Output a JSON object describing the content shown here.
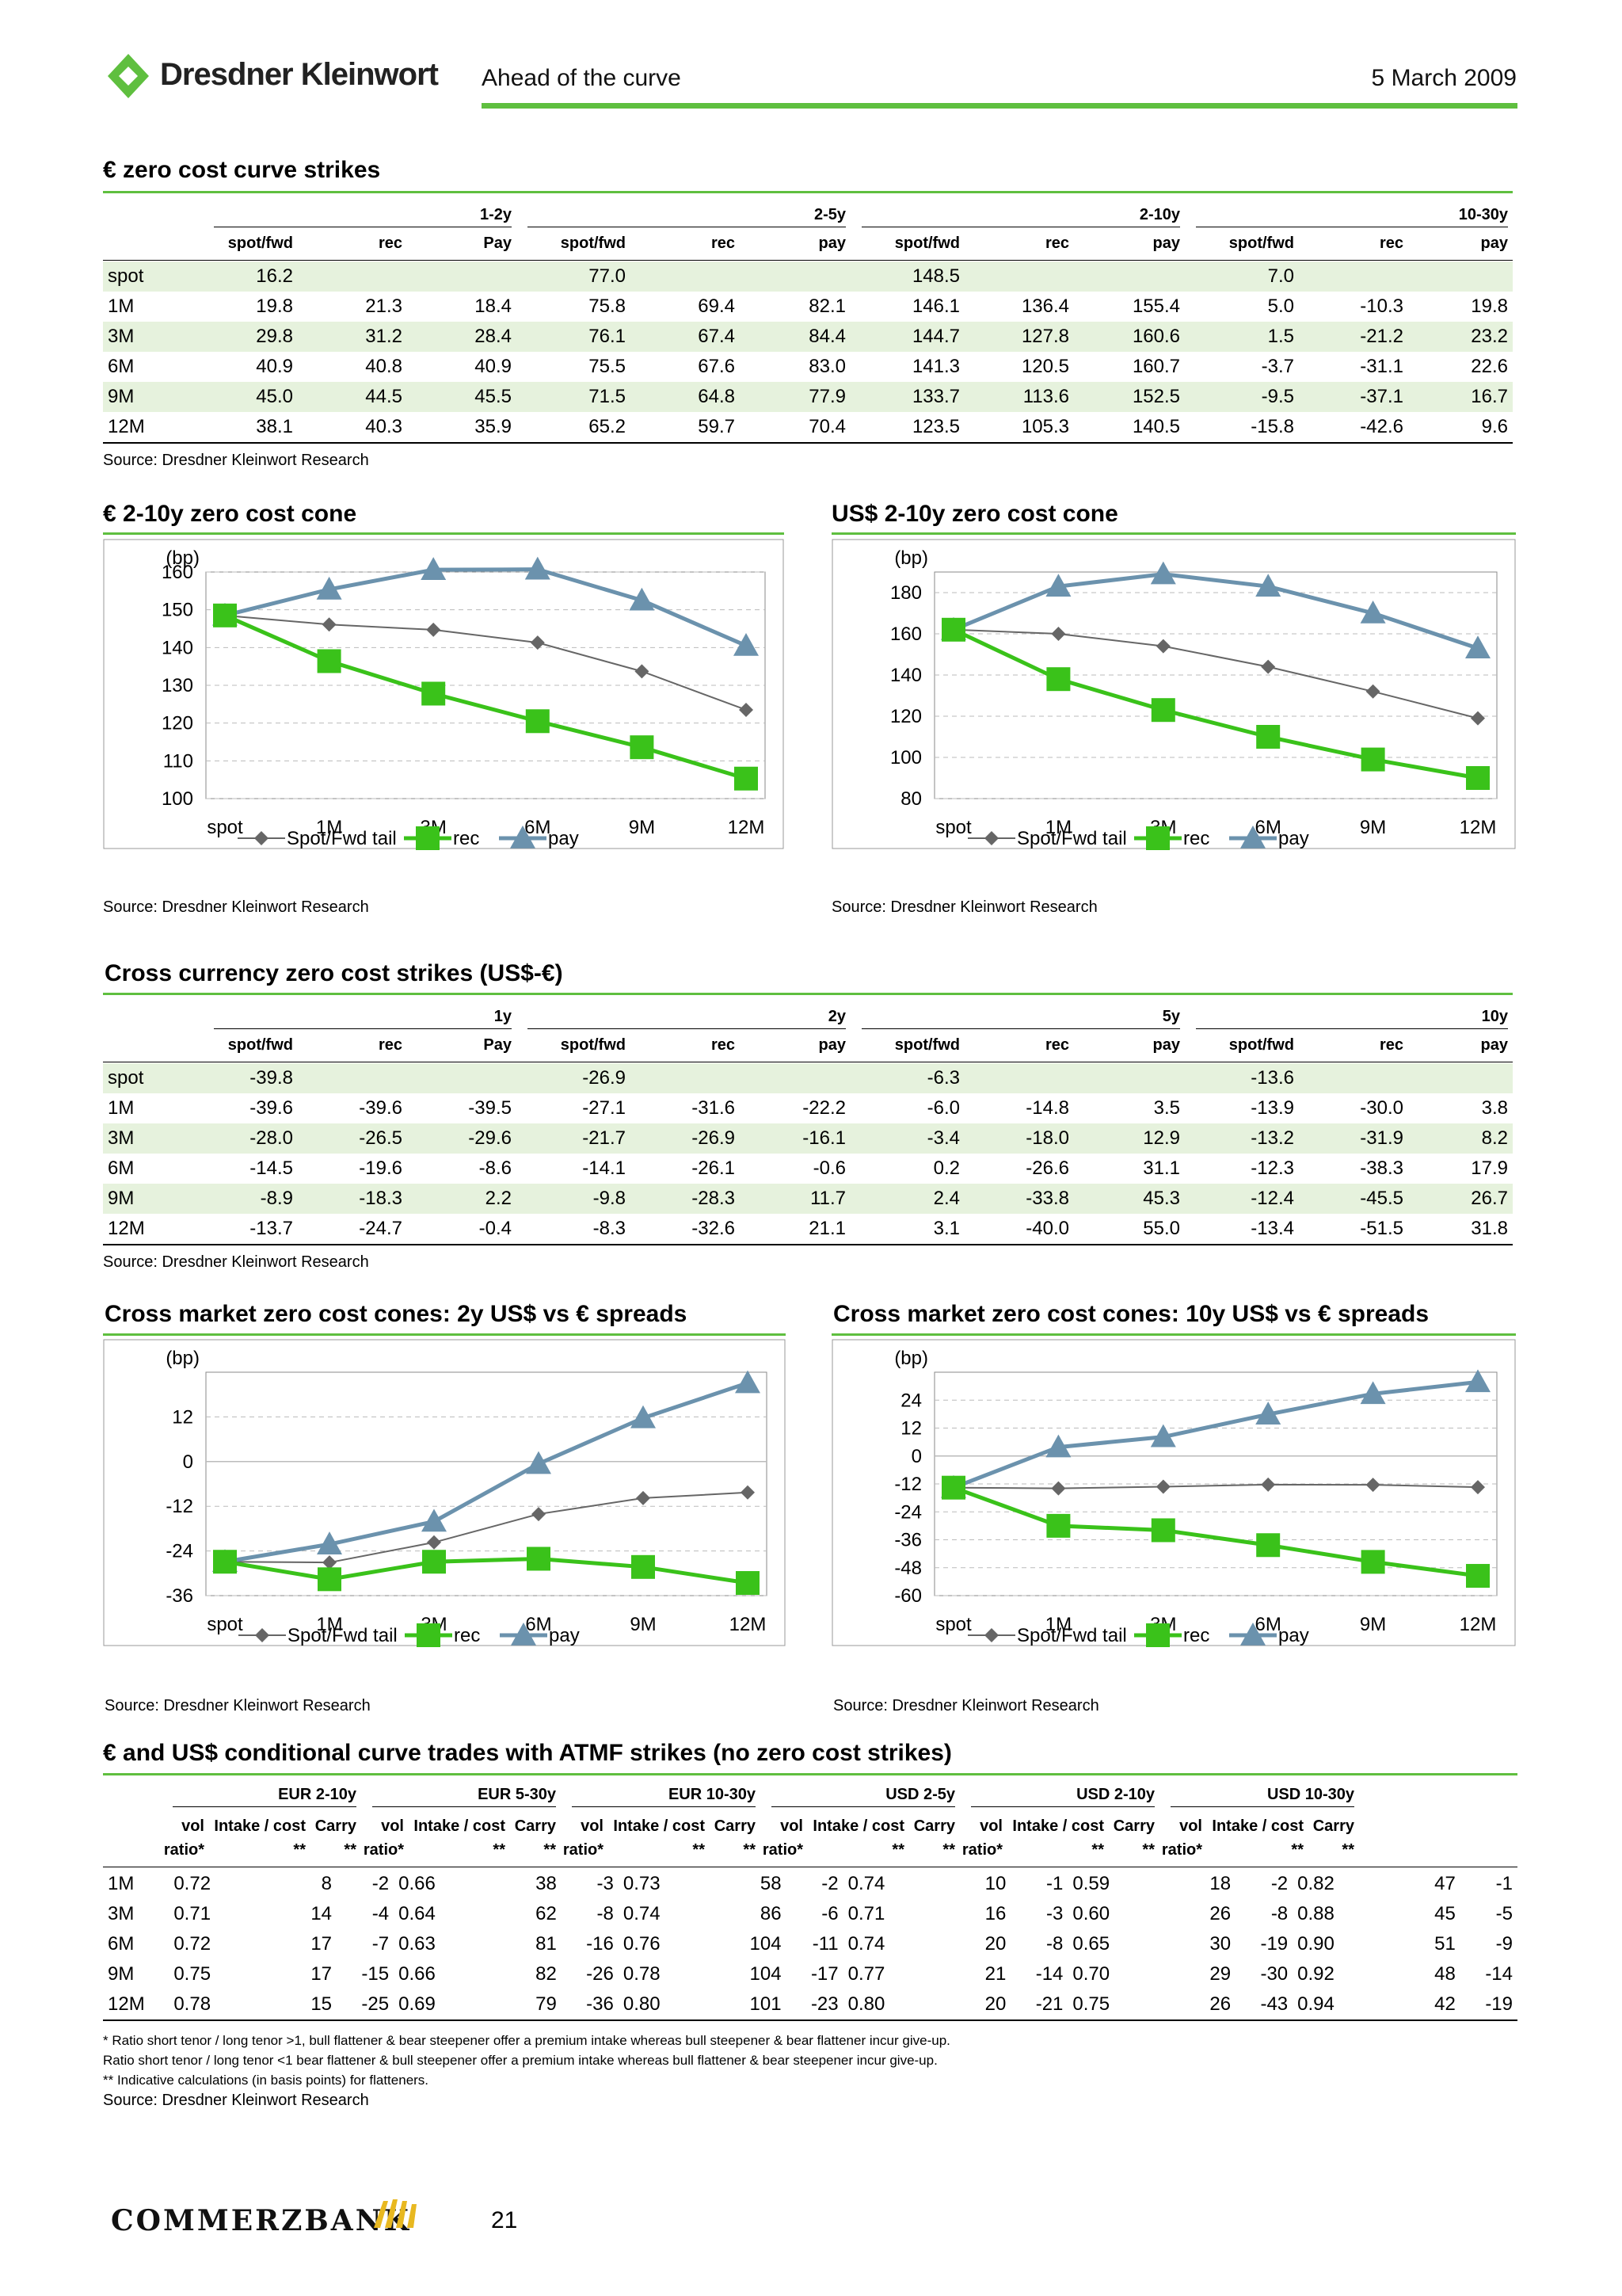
{
  "header": {
    "brand": "Dresdner Kleinwort",
    "publication": "Ahead of the curve",
    "date": "5 March 2009"
  },
  "footer": {
    "brand": "COMMERZBANK",
    "page": "21"
  },
  "source_text": "Source: Dresdner Kleinwort Research",
  "table1": {
    "title": "€ zero cost curve strikes",
    "groups": [
      "1-2y",
      "2-5y",
      "2-10y",
      "10-30y"
    ],
    "subheaders": [
      "spot/fwd",
      "rec",
      "Pay",
      "spot/fwd",
      "rec",
      "pay",
      "spot/fwd",
      "rec",
      "pay",
      "spot/fwd",
      "rec",
      "pay"
    ],
    "rows": [
      [
        "spot",
        "16.2",
        "",
        "",
        "77.0",
        "",
        "",
        "148.5",
        "",
        "",
        "7.0",
        "",
        ""
      ],
      [
        "1M",
        "19.8",
        "21.3",
        "18.4",
        "75.8",
        "69.4",
        "82.1",
        "146.1",
        "136.4",
        "155.4",
        "5.0",
        "-10.3",
        "19.8"
      ],
      [
        "3M",
        "29.8",
        "31.2",
        "28.4",
        "76.1",
        "67.4",
        "84.4",
        "144.7",
        "127.8",
        "160.6",
        "1.5",
        "-21.2",
        "23.2"
      ],
      [
        "6M",
        "40.9",
        "40.8",
        "40.9",
        "75.5",
        "67.6",
        "83.0",
        "141.3",
        "120.5",
        "160.7",
        "-3.7",
        "-31.1",
        "22.6"
      ],
      [
        "9M",
        "45.0",
        "44.5",
        "45.5",
        "71.5",
        "64.8",
        "77.9",
        "133.7",
        "113.6",
        "152.5",
        "-9.5",
        "-37.1",
        "16.7"
      ],
      [
        "12M",
        "38.1",
        "40.3",
        "35.9",
        "65.2",
        "59.7",
        "70.4",
        "123.5",
        "105.3",
        "140.5",
        "-15.8",
        "-42.6",
        "9.6"
      ]
    ]
  },
  "table2": {
    "title": "Cross currency zero cost strikes (US$-€)",
    "groups": [
      "1y",
      "2y",
      "5y",
      "10y"
    ],
    "subheaders": [
      "spot/fwd",
      "rec",
      "Pay",
      "spot/fwd",
      "rec",
      "pay",
      "spot/fwd",
      "rec",
      "pay",
      "spot/fwd",
      "rec",
      "pay"
    ],
    "rows": [
      [
        "spot",
        "-39.8",
        "",
        "",
        "-26.9",
        "",
        "",
        "-6.3",
        "",
        "",
        "-13.6",
        "",
        ""
      ],
      [
        "1M",
        "-39.6",
        "-39.6",
        "-39.5",
        "-27.1",
        "-31.6",
        "-22.2",
        "-6.0",
        "-14.8",
        "3.5",
        "-13.9",
        "-30.0",
        "3.8"
      ],
      [
        "3M",
        "-28.0",
        "-26.5",
        "-29.6",
        "-21.7",
        "-26.9",
        "-16.1",
        "-3.4",
        "-18.0",
        "12.9",
        "-13.2",
        "-31.9",
        "8.2"
      ],
      [
        "6M",
        "-14.5",
        "-19.6",
        "-8.6",
        "-14.1",
        "-26.1",
        "-0.6",
        "0.2",
        "-26.6",
        "31.1",
        "-12.3",
        "-38.3",
        "17.9"
      ],
      [
        "9M",
        "-8.9",
        "-18.3",
        "2.2",
        "-9.8",
        "-28.3",
        "11.7",
        "2.4",
        "-33.8",
        "45.3",
        "-12.4",
        "-45.5",
        "26.7"
      ],
      [
        "12M",
        "-13.7",
        "-24.7",
        "-0.4",
        "-8.3",
        "-32.6",
        "21.1",
        "3.1",
        "-40.0",
        "55.0",
        "-13.4",
        "-51.5",
        "31.8"
      ]
    ]
  },
  "table3": {
    "title": "€ and US$ conditional curve trades with ATMF strikes (no zero cost strikes)",
    "groups": [
      "EUR 2-10y",
      "EUR 5-30y",
      "EUR 10-30y",
      "USD 2-5y",
      "USD 2-10y",
      "USD 10-30y"
    ],
    "sub1": [
      "vol",
      "Intake / cost",
      "Carry"
    ],
    "sub2": [
      "ratio*",
      "**",
      "**"
    ],
    "rows": [
      [
        "1M",
        "0.72",
        "8",
        "-2",
        "0.66",
        "38",
        "-3",
        "0.73",
        "58",
        "-2",
        "0.74",
        "10",
        "-1",
        "0.59",
        "18",
        "-2",
        "0.82",
        "47",
        "-1"
      ],
      [
        "3M",
        "0.71",
        "14",
        "-4",
        "0.64",
        "62",
        "-8",
        "0.74",
        "86",
        "-6",
        "0.71",
        "16",
        "-3",
        "0.60",
        "26",
        "-8",
        "0.88",
        "45",
        "-5"
      ],
      [
        "6M",
        "0.72",
        "17",
        "-7",
        "0.63",
        "81",
        "-16",
        "0.76",
        "104",
        "-11",
        "0.74",
        "20",
        "-8",
        "0.65",
        "30",
        "-19",
        "0.90",
        "51",
        "-9"
      ],
      [
        "9M",
        "0.75",
        "17",
        "-15",
        "0.66",
        "82",
        "-26",
        "0.78",
        "104",
        "-17",
        "0.77",
        "21",
        "-14",
        "0.70",
        "29",
        "-30",
        "0.92",
        "48",
        "-14"
      ],
      [
        "12M",
        "0.78",
        "15",
        "-25",
        "0.69",
        "79",
        "-36",
        "0.80",
        "101",
        "-23",
        "0.80",
        "20",
        "-21",
        "0.75",
        "26",
        "-43",
        "0.94",
        "42",
        "-19"
      ]
    ],
    "notes": [
      "* Ratio short tenor / long tenor >1, bull flattener & bear steepener offer a premium intake whereas bull steepener & bear flattener incur give-up.",
      "Ratio short tenor / long tenor <1 bear flattener & bull steepener offer a premium intake whereas bull flattener & bear steepener incur give-up.",
      "** Indicative calculations (in basis points) for flatteners."
    ]
  },
  "chart_data": [
    {
      "type": "line",
      "title": "€ 2-10y zero cost cone",
      "ylabel": "(bp)",
      "categories": [
        "spot",
        "1M",
        "3M",
        "6M",
        "9M",
        "12M"
      ],
      "ylim": [
        100,
        160
      ],
      "yticks": [
        100,
        110,
        120,
        130,
        140,
        150,
        160
      ],
      "ytick_labels": [
        "100",
        "110",
        "120",
        "130",
        "140",
        "150",
        "160"
      ],
      "series": [
        {
          "name": "Spot/Fwd tail",
          "values": [
            148.5,
            146.1,
            144.7,
            141.3,
            133.7,
            123.5
          ]
        },
        {
          "name": "rec",
          "values": [
            148.5,
            136.4,
            127.8,
            120.5,
            113.6,
            105.3
          ]
        },
        {
          "name": "pay",
          "values": [
            148.5,
            155.4,
            160.6,
            160.7,
            152.5,
            140.5
          ]
        }
      ]
    },
    {
      "type": "line",
      "title": "US$ 2-10y zero cost cone",
      "ylabel": "(bp)",
      "categories": [
        "spot",
        "1M",
        "3M",
        "6M",
        "9M",
        "12M"
      ],
      "ylim": [
        80,
        190
      ],
      "yticks": [
        80,
        100,
        120,
        140,
        160,
        180
      ],
      "ytick_labels": [
        "80",
        "100",
        "120",
        "140",
        "160",
        "180"
      ],
      "series": [
        {
          "name": "Spot/Fwd tail",
          "values": [
            162,
            160,
            154,
            144,
            132,
            119
          ]
        },
        {
          "name": "rec",
          "values": [
            162,
            138,
            123,
            110,
            99,
            90
          ]
        },
        {
          "name": "pay",
          "values": [
            162,
            183,
            189,
            183,
            170,
            153
          ]
        }
      ]
    },
    {
      "type": "line",
      "title": "Cross market zero cost cones: 2y US$ vs € spreads",
      "ylabel": "(bp)",
      "categories": [
        "spot",
        "1M",
        "3M",
        "6M",
        "9M",
        "12M"
      ],
      "ylim": [
        -36,
        24
      ],
      "yticks": [
        -36,
        -24,
        -12,
        0,
        12
      ],
      "ytick_labels": [
        "-36",
        "-24",
        "-12",
        "0",
        "12"
      ],
      "series": [
        {
          "name": "Spot/Fwd tail",
          "values": [
            -26.9,
            -27.1,
            -21.7,
            -14.1,
            -9.8,
            -8.3
          ]
        },
        {
          "name": "rec",
          "values": [
            -26.9,
            -31.6,
            -26.9,
            -26.1,
            -28.3,
            -32.6
          ]
        },
        {
          "name": "pay",
          "values": [
            -26.9,
            -22.2,
            -16.1,
            -0.6,
            11.7,
            21.1
          ]
        }
      ]
    },
    {
      "type": "line",
      "title": "Cross market zero cost cones: 10y US$ vs € spreads",
      "ylabel": "(bp)",
      "categories": [
        "spot",
        "1M",
        "3M",
        "6M",
        "9M",
        "12M"
      ],
      "ylim": [
        -60,
        36
      ],
      "yticks": [
        -60,
        -48,
        -36,
        -24,
        -12,
        0,
        12,
        24
      ],
      "ytick_labels": [
        "-60",
        "-48",
        "-36",
        "-24",
        "-12",
        "0",
        "12",
        "24"
      ],
      "series": [
        {
          "name": "Spot/Fwd tail",
          "values": [
            -13.6,
            -13.9,
            -13.2,
            -12.3,
            -12.4,
            -13.4
          ]
        },
        {
          "name": "rec",
          "values": [
            -13.6,
            -30.0,
            -31.9,
            -38.3,
            -45.5,
            -51.5
          ]
        },
        {
          "name": "pay",
          "values": [
            -13.6,
            3.8,
            8.2,
            17.9,
            26.7,
            31.8
          ]
        }
      ]
    }
  ],
  "colors": {
    "accent": "#5fbf3f",
    "rec": "#3ac21a",
    "pay": "#6b92ad",
    "tail": "#666666",
    "shade": "#e6f2dd"
  }
}
